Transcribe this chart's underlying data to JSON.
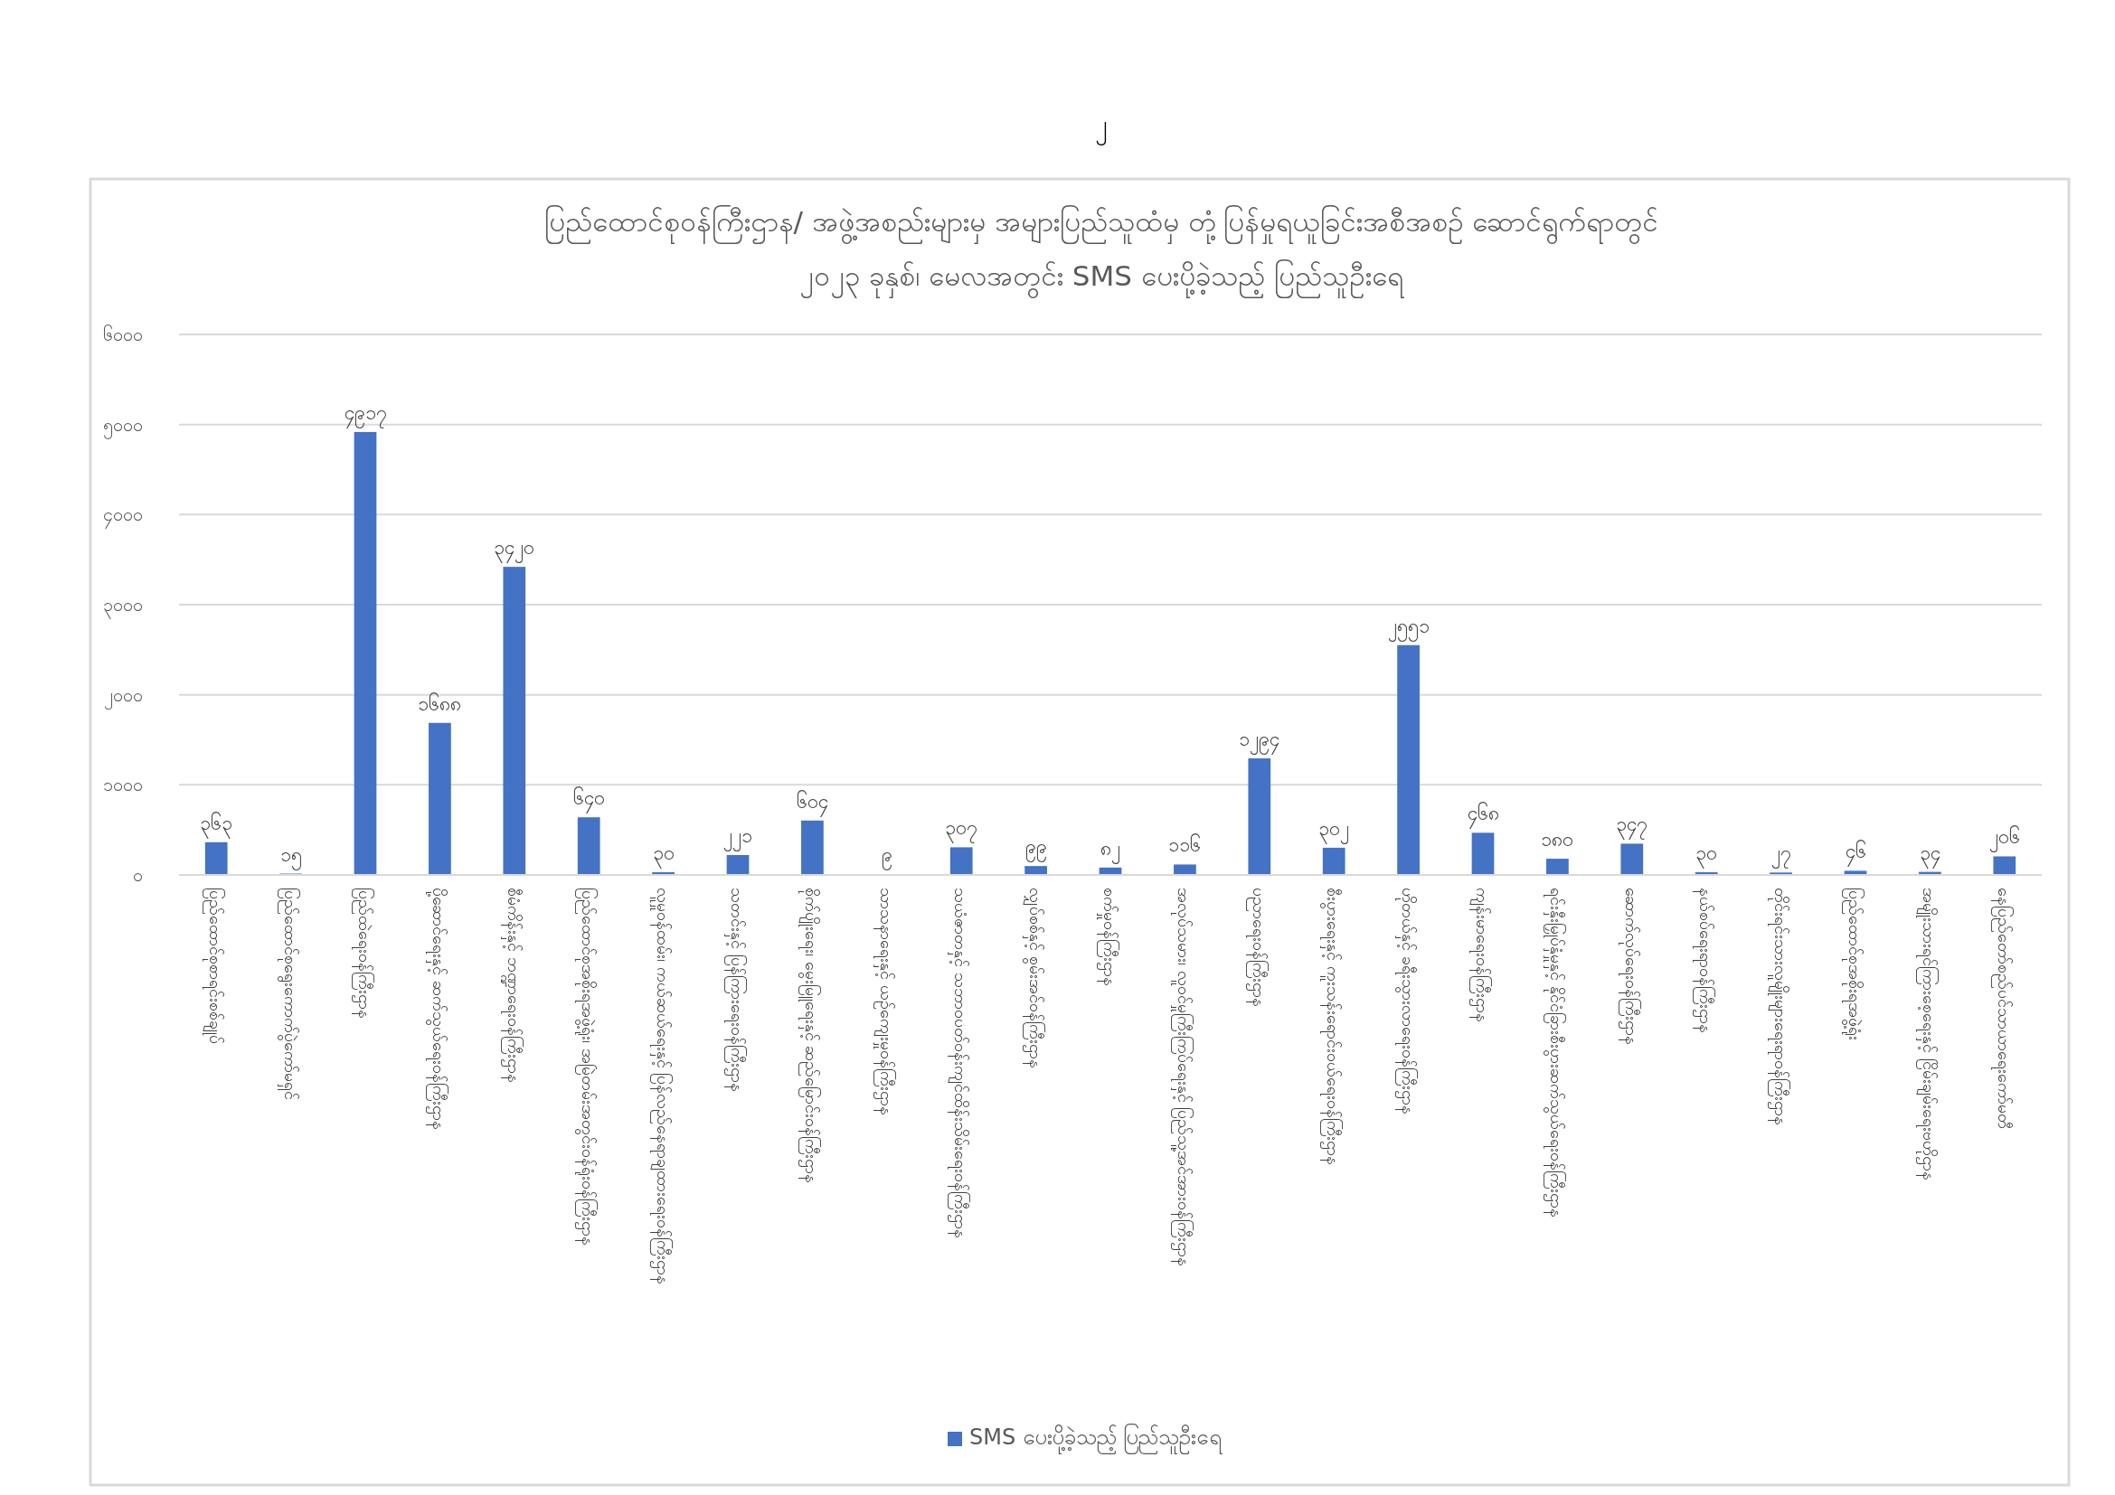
{
  "chart_data": {
    "type": "bar",
    "title": "ပြည်ထောင်စုဝန်ကြီးဌာန/ အဖွဲ့အစည်းများမှ အများပြည်သူထံမှ တုံ့ပြန်မှုရယူခြင်းအစီအစဉ် ဆောင်ရွက်ရာတွင်",
    "subtitle": "၂၀၂၃ ခုနှစ်၊ မေလအတွင်း SMS ပေးပို့ခဲ့သည့် ပြည်သူဦးရေ",
    "annotations": [
      "၂"
    ],
    "categories": [
      "ပြည်ထောင်စုစာရင်းစစ်ချုပ်",
      "ပြည်ထောင်စုရွေးကောက်ပွဲကော်မရှင်",
      "ပြည်ထဲရေးဝန်ကြီးဌာန",
      "ပို့ဆောင်ရေးနှင့် ဆက်သွယ်ရေးဝန်ကြီးဌာန",
      "စီမံကိန်းနှင့် ဘဏ္ဍာရေးဝန်ကြီးဌာန",
      "ပြည်ထောင်စုအစိုးရအဖွဲ့ရုံး၊ အမြဲတမ်းအတွင်းဝန်ရုံးဝန်ကြီးဌာန",
      "လူမှုဝန်ထမ်း၊ ကယ်ဆယ်ရေးနှင့် ပြန်လည်နေရာချထားရေးဝန်ကြီးဌာန",
      "သတင်းနှင့် ပြန်ကြားရေးဝန်ကြီးဌာန",
      "စိုက်ပျိုးရေး၊ မွေးမြူရေးနှင့် ဆည်မြောင်းဝန်ကြီးဌာန",
      "သာသနာရေးနှင့် ယဉ်ကျေးမှုဝန်ကြီးဌာန",
      "သယံဇာတနှင့် သဘာဝပတ်ဝန်းကျင်ထိန်းသိမ်းရေးဝန်ကြီးဌာန",
      "လျှပ်စစ်နှင့် စွမ်းအင်ဝန်ကြီးဌာန",
      "စက်မှုဝန်ကြီးဌာန",
      "အလုပ်သမား၊ လူဝင်မှုကြီးကြပ်ရေးနှင့် ပြည်သူ့အင်အားဝန်ကြီးဌာန",
      "ပညာရေးဝန်ကြီးဌာန",
      "စီးပွားရေးနှင့် ကူးသန်းရောင်းဝယ်ရေးဝန်ကြီးဌာန",
      "ဟိုတယ်နှင့် ခရီးသွားလာရေးဝန်ကြီးဌာန",
      "ကျန်းမာရေးဝန်ကြီးဌာန",
      "ရင်းနှီးမြှုပ်နှံမှုနှင့် နိုင်ငံခြားစီးပွားဆက်သွယ်ရေးဝန်ကြီးဌာန",
      "ဆောက်လုပ်ရေးဝန်ကြီးဌာန",
      "နယ်စပ်ရေးရာဝန်ကြီးဌာန",
      "တိုင်းရင်းသားလူမျိုးများရေးရာဝန်ကြီးဌာန",
      "ပြည်ထောင်စုအစိုးရအဖွဲ့ရုံး",
      "အမျိုးသားရင်ကြားစေ့ရေးနှင့် ငြိမ်းချမ်းရေးဗဟိုဌာန",
      "နေပြည်တော်စည်ပင်သာယာရေးကော်မတီ"
    ],
    "series": [
      {
        "name": "SMS ပေးပို့ခဲ့သည့် ပြည်သူဦးရေ",
        "color": "#4472c4",
        "values": [
          363,
          15,
          4917,
          1688,
          3420,
          640,
          30,
          221,
          604,
          9,
          307,
          99,
          82,
          116,
          1294,
          302,
          2551,
          468,
          180,
          347,
          30,
          27,
          46,
          34,
          206
        ],
        "value_labels": [
          "၃၆၃",
          "၁၅",
          "၄၉၁၇",
          "၁၆၈၈",
          "၃၄၂၀",
          "၆၄၀",
          "၃၀",
          "၂၂၁",
          "၆၀၄",
          "၉",
          "၃၀၇",
          "၉၉",
          "၈၂",
          "၁၁၆",
          "၁၂၉၄",
          "၃၀၂",
          "၂၅၅၁",
          "၄၆၈",
          "၁၈၀",
          "၃၄၇",
          "၃၀",
          "၂၇",
          "၄၆",
          "၃၄",
          "၂၀၆"
        ]
      }
    ],
    "ylim": [
      0,
      6000
    ],
    "yticks": [
      {
        "value": 0,
        "label": "၀"
      },
      {
        "value": 1000,
        "label": "၁၀၀၀"
      },
      {
        "value": 2000,
        "label": "၂၀၀၀"
      },
      {
        "value": 3000,
        "label": "၃၀၀၀"
      },
      {
        "value": 4000,
        "label": "၄၀၀၀"
      },
      {
        "value": 5000,
        "label": "၅၀၀၀"
      },
      {
        "value": 6000,
        "label": "၆၀၀၀"
      }
    ],
    "grid": "y",
    "legend": "bottom"
  }
}
